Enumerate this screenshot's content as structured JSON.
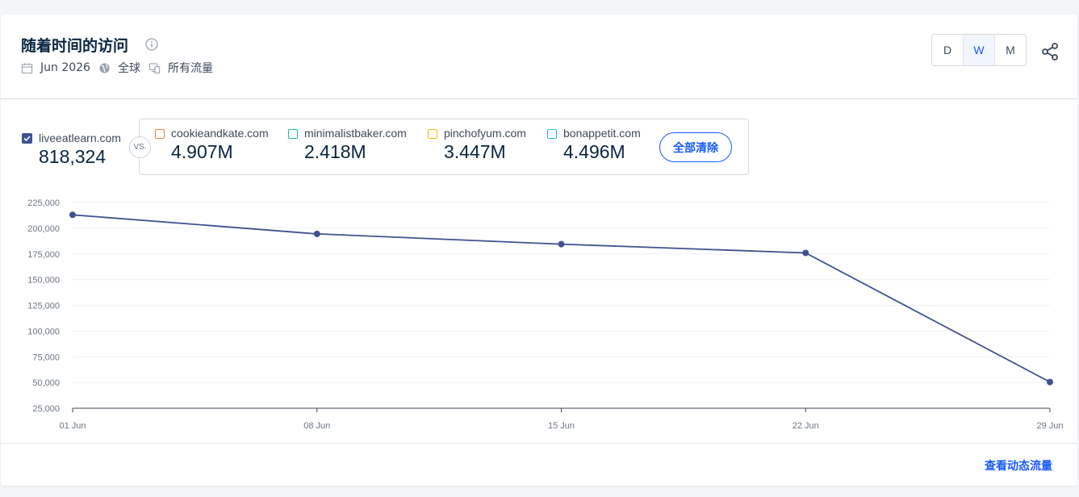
{
  "header": {
    "title": "随着时间的访问",
    "date": "Jun 2026",
    "region": "全球",
    "traffic": "所有流量",
    "granularity": [
      "D",
      "W",
      "M"
    ],
    "active_granularity": "W"
  },
  "main_site": {
    "name": "liveeatlearn.com",
    "value": "818,324",
    "color": "#3f518f"
  },
  "vs_label": "VS.",
  "competitors": [
    {
      "name": "cookieandkate.com",
      "value": "4.907M",
      "color": "#f5803e"
    },
    {
      "name": "minimalistbaker.com",
      "value": "2.418M",
      "color": "#1fc0a0"
    },
    {
      "name": "pinchofyum.com",
      "value": "3.447M",
      "color": "#ffb800"
    },
    {
      "name": "bonappetit.com",
      "value": "4.496M",
      "color": "#1fb8e6"
    }
  ],
  "clear_all_label": "全部清除",
  "footer_link": "查看动态流量",
  "chart_data": {
    "type": "line",
    "x": [
      "01 Jun",
      "08 Jun",
      "15 Jun",
      "22 Jun",
      "29 Jun"
    ],
    "yticks": [
      "225,000",
      "200,000",
      "175,000",
      "150,000",
      "125,000",
      "100,000",
      "75,000",
      "50,000",
      "25,000"
    ],
    "ylim": [
      25000,
      225000
    ],
    "grid": true,
    "series": [
      {
        "name": "liveeatlearn.com",
        "values": [
          213000,
          194500,
          184500,
          176000,
          50500
        ],
        "color": "#3f518f"
      }
    ]
  }
}
